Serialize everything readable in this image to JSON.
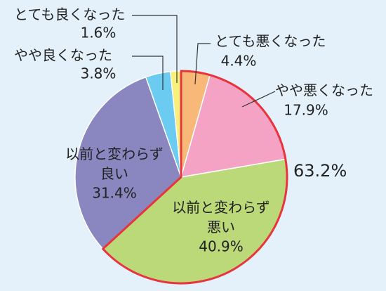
{
  "chart_data": {
    "type": "pie",
    "categories": [
      "とても悪くなった",
      "やや悪くなった",
      "以前と変わらず\n悪い",
      "以前と変わらず\n良い",
      "やや良くなった",
      "とても良くなった"
    ],
    "values": [
      4.4,
      17.9,
      40.9,
      31.4,
      3.8,
      1.6
    ],
    "value_labels": [
      "4.4%",
      "17.9%",
      "40.9%",
      "31.4%",
      "3.8%",
      "1.6%"
    ],
    "colors": [
      "#f8b878",
      "#f5a3c4",
      "#bcd97a",
      "#8a86c0",
      "#6ccbf0",
      "#f7f07a"
    ],
    "annotation": "63.2%",
    "annotation_color": "#e8343c"
  }
}
